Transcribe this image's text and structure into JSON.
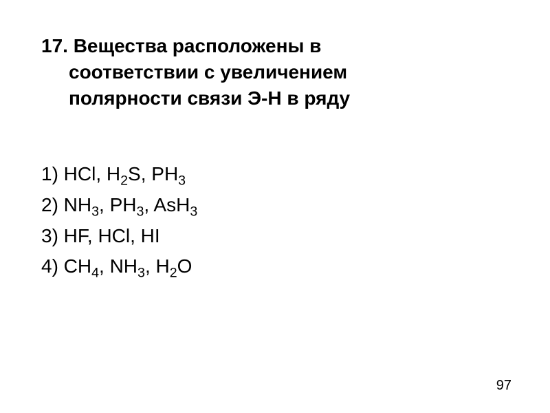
{
  "question": {
    "number": "17.",
    "line1": "17. Вещества расположены в",
    "line2": "соответствии с увеличением",
    "line3": "полярности связи Э-Н в ряду"
  },
  "options": {
    "opt1_prefix": "1) HCl, H",
    "opt1_sub1": "2",
    "opt1_mid": "S, PH",
    "opt1_sub2": "3",
    "opt2_prefix": "2) NH",
    "opt2_sub1": "3",
    "opt2_mid1": ", PH",
    "opt2_sub2": "3",
    "opt2_mid2": ", AsH",
    "opt2_sub3": "3",
    "opt3_text": "3) HF, HCl, HI",
    "opt4_prefix": "4) CH",
    "opt4_sub1": "4",
    "opt4_mid1": ", NH",
    "opt4_sub2": "3",
    "opt4_mid2": ", H",
    "opt4_sub3": "2",
    "opt4_end": "O"
  },
  "page_number": "97",
  "style": {
    "background_color": "#ffffff",
    "text_color": "#000000",
    "question_fontsize": 28,
    "question_fontweight": "bold",
    "options_fontsize": 28,
    "options_fontweight": "normal",
    "page_number_fontsize": 20,
    "font_family": "Arial, sans-serif"
  }
}
